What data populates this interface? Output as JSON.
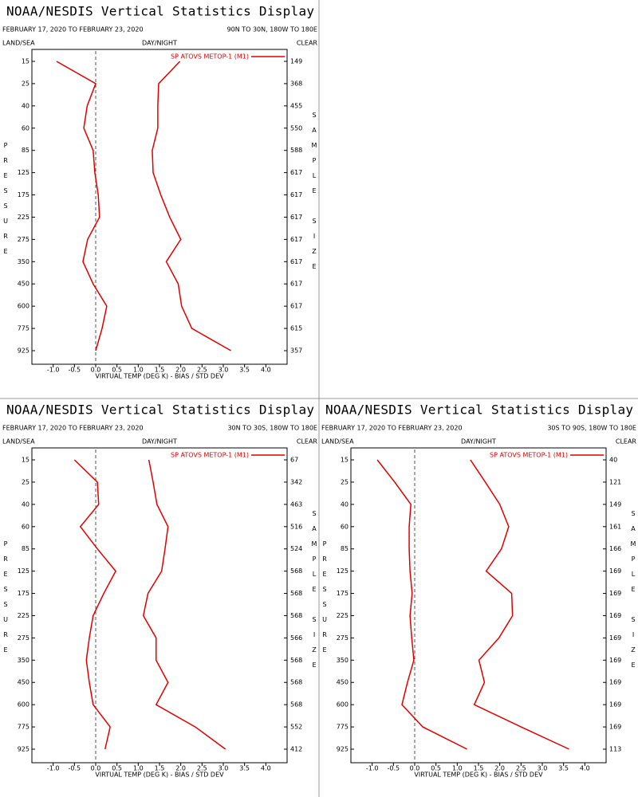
{
  "chart_data": [
    {
      "type": "line",
      "title": "NOAA/NESDIS Vertical Statistics Display",
      "subtitle": "FEBRUARY 17, 2020 TO FEBRUARY 23, 2020",
      "region": "90N TO 30N, 180W TO 180E",
      "corner_labels": [
        "LAND/SEA",
        "DAY/NIGHT",
        "CLEAR"
      ],
      "y_label": "PRESSURE",
      "y2_label": "SAMPLE SIZE",
      "x_label": "VIRTUAL TEMP (DEG K) - BIAS / STD DEV",
      "categories": [
        15,
        25,
        40,
        60,
        85,
        125,
        175,
        225,
        275,
        350,
        450,
        600,
        775,
        925
      ],
      "series": [
        {
          "name": "SP ATOVS METOP-1 (M1)",
          "color": "#e00000",
          "bias": [
            -0.92,
            0.0,
            -0.2,
            -0.28,
            -0.06,
            -0.02,
            0.06,
            0.09,
            -0.19,
            -0.3,
            -0.06,
            0.26,
            0.15,
            0.0
          ],
          "std_dev": [
            1.98,
            1.48,
            1.46,
            1.46,
            1.33,
            1.35,
            1.53,
            1.74,
            2.0,
            1.66,
            1.94,
            2.02,
            2.26,
            3.18
          ]
        }
      ],
      "sample_size": [
        149,
        368,
        455,
        550,
        588,
        617,
        617,
        617,
        617,
        617,
        617,
        617,
        615,
        357
      ],
      "xlim": [
        -1.5,
        4.5
      ],
      "xticks": [
        {
          "value": -1,
          "label": "-1.0"
        },
        -0.5,
        {
          "value": 0,
          "label": "0.0"
        },
        0.5,
        {
          "value": 1,
          "label": "1.0"
        },
        1.5,
        {
          "value": 2,
          "label": "2.0"
        },
        2.5,
        {
          "value": 3,
          "label": "3.0"
        },
        3.5,
        {
          "value": 4,
          "label": "4.0"
        }
      ]
    },
    {
      "type": "line",
      "title": "NOAA/NESDIS Vertical Statistics Display",
      "subtitle": "FEBRUARY 17, 2020 TO FEBRUARY 23, 2020",
      "region": "30N TO 30S, 180W TO 180E",
      "corner_labels": [
        "LAND/SEA",
        "DAY/NIGHT",
        "CLEAR"
      ],
      "y_label": "PRESSURE",
      "y2_label": "SAMPLE SIZE",
      "x_label": "VIRTUAL TEMP (DEG K) - BIAS / STD DEV",
      "categories": [
        15,
        25,
        40,
        60,
        85,
        125,
        175,
        225,
        275,
        350,
        450,
        600,
        775,
        925
      ],
      "series": [
        {
          "name": "SP ATOVS METOP-1 (M1)",
          "color": "#e00000",
          "bias": [
            -0.5,
            0.04,
            0.07,
            -0.36,
            0.04,
            0.47,
            0.19,
            -0.06,
            -0.15,
            -0.22,
            -0.15,
            -0.06,
            0.34,
            0.22
          ],
          "std_dev": [
            1.25,
            1.35,
            1.44,
            1.7,
            1.63,
            1.55,
            1.23,
            1.12,
            1.42,
            1.42,
            1.7,
            1.42,
            2.34,
            3.05
          ]
        }
      ],
      "sample_size": [
        67,
        342,
        463,
        516,
        524,
        568,
        568,
        568,
        566,
        568,
        568,
        568,
        552,
        412
      ],
      "xlim": [
        -1.5,
        4.5
      ],
      "xticks": [
        {
          "value": -1,
          "label": "-1.0"
        },
        -0.5,
        {
          "value": 0,
          "label": "0.0"
        },
        0.5,
        {
          "value": 1,
          "label": "1.0"
        },
        1.5,
        {
          "value": 2,
          "label": "2.0"
        },
        2.5,
        {
          "value": 3,
          "label": "3.0"
        },
        3.5,
        {
          "value": 4,
          "label": "4.0"
        }
      ]
    },
    {
      "type": "line",
      "title": "NOAA/NESDIS Vertical Statistics Display",
      "subtitle": "FEBRUARY 17, 2020 TO FEBRUARY 23, 2020",
      "region": "30S TO 90S, 180W TO 180E",
      "corner_labels": [
        "LAND/SEA",
        "DAY/NIGHT",
        "CLEAR"
      ],
      "y_label": "PRESSURE",
      "y2_label": "SAMPLE SIZE",
      "x_label": "VIRTUAL TEMP (DEG K) - BIAS / STD DEV",
      "categories": [
        15,
        25,
        40,
        60,
        85,
        125,
        175,
        225,
        275,
        350,
        450,
        600,
        775,
        925
      ],
      "series": [
        {
          "name": "SP ATOVS METOP-1 (M1)",
          "color": "#e00000",
          "bias": [
            -0.88,
            -0.47,
            -0.09,
            -0.13,
            -0.13,
            -0.11,
            -0.06,
            -0.11,
            -0.07,
            -0.02,
            -0.17,
            -0.3,
            0.19,
            1.23
          ],
          "std_dev": [
            1.31,
            1.66,
            2.0,
            2.21,
            2.04,
            1.68,
            2.28,
            2.3,
            1.98,
            1.51,
            1.64,
            1.4,
            2.5,
            3.63
          ]
        }
      ],
      "sample_size": [
        40,
        121,
        149,
        161,
        166,
        169,
        169,
        169,
        169,
        169,
        169,
        169,
        169,
        113
      ],
      "xlim": [
        -1.5,
        4.5
      ],
      "xticks": [
        {
          "value": -1,
          "label": "-1.0"
        },
        -0.5,
        {
          "value": 0,
          "label": "0.0"
        },
        0.5,
        {
          "value": 1,
          "label": "1.0"
        },
        1.5,
        {
          "value": 2,
          "label": "2.0"
        },
        2.5,
        {
          "value": 3,
          "label": "3.0"
        },
        3.5,
        {
          "value": 4,
          "label": "4.0"
        }
      ]
    }
  ]
}
